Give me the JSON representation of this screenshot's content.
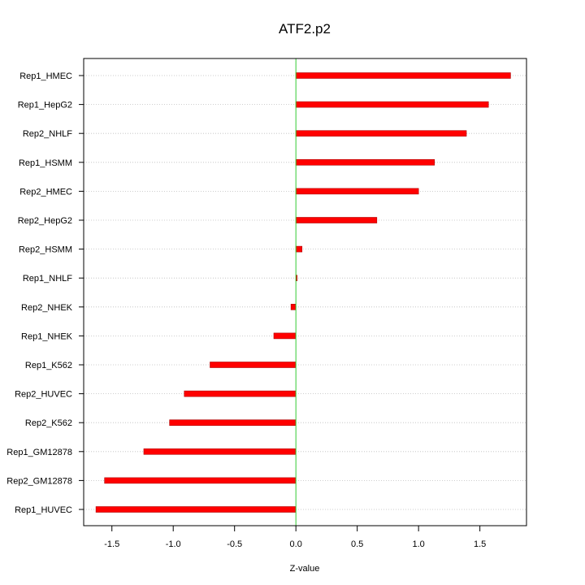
{
  "chart_data": {
    "type": "bar",
    "orientation": "horizontal",
    "title": "ATF2.p2",
    "xlabel": "Z-value",
    "ylabel": "",
    "xlim": [
      -1.73,
      1.88
    ],
    "xticks": [
      -1.5,
      -1.0,
      -0.5,
      0.0,
      0.5,
      1.0,
      1.5
    ],
    "xtick_labels": [
      "-1.5",
      "-1.0",
      "-0.5",
      "0.0",
      "0.5",
      "1.0",
      "1.5"
    ],
    "grid": "horizontal dotted",
    "zero_line": true,
    "categories": [
      "Rep1_HMEC",
      "Rep1_HepG2",
      "Rep2_NHLF",
      "Rep1_HSMM",
      "Rep2_HMEC",
      "Rep2_HepG2",
      "Rep2_HSMM",
      "Rep1_NHLF",
      "Rep2_NHEK",
      "Rep1_NHEK",
      "Rep1_K562",
      "Rep2_HUVEC",
      "Rep2_K562",
      "Rep1_GM12878",
      "Rep2_GM12878",
      "Rep1_HUVEC"
    ],
    "values": [
      1.75,
      1.57,
      1.39,
      1.13,
      1.0,
      0.66,
      0.05,
      0.01,
      -0.04,
      -0.18,
      -0.7,
      -0.91,
      -1.03,
      -1.24,
      -1.56,
      -1.63
    ]
  },
  "colors": {
    "bar": "#ff0000",
    "bar_edge": "#b00000",
    "zero_line": "#33cc33",
    "grid": "#bdbdbd",
    "axis": "#000000"
  }
}
